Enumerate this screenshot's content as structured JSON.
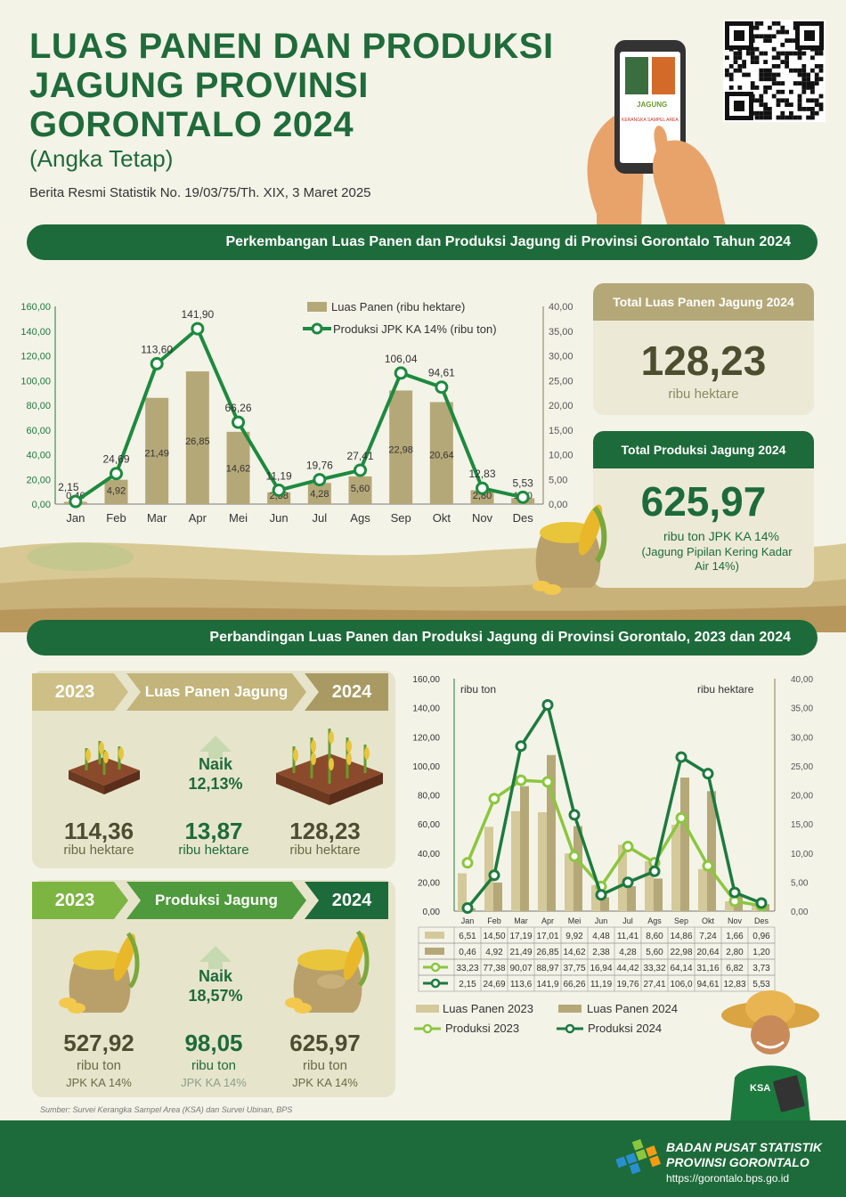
{
  "header": {
    "title": "LUAS PANEN DAN PRODUKSI JAGUNG PROVINSI GORONTALO 2024",
    "subtitle": "(Angka Tetap)",
    "release": "Berita Resmi Statistik No. 19/03/75/Th. XIX, 3 Maret 2025",
    "phone_caption": "JAGUNG",
    "phone_footer": "KERANGKA SAMPEL AREA"
  },
  "section1": {
    "banner": "Perkembangan Luas Panen dan Produksi Jagung di Provinsi Gorontalo Tahun 2024",
    "total_area": {
      "label": "Total Luas Panen Jagung 2024",
      "value": "128,23",
      "unit": "ribu hektare"
    },
    "total_prod": {
      "label": "Total Produksi Jagung 2024",
      "value": "625,97",
      "unit": "ribu ton JPK KA 14%",
      "note": "(Jagung Pipilan Kering Kadar Air 14%)"
    }
  },
  "section2": {
    "banner": "Perbandingan Luas Panen dan Produksi Jagung di Provinsi Gorontalo, 2023 dan 2024",
    "area": {
      "year_a": "2023",
      "label": "Luas Panen Jagung",
      "year_b": "2024",
      "value_a": "114,36",
      "unit_a": "ribu hektare",
      "change_label": "Naik",
      "change_pct": "12,13%",
      "diff": "13,87",
      "diff_unit": "ribu hektare",
      "value_b": "128,23",
      "unit_b": "ribu hektare"
    },
    "prod": {
      "year_a": "2023",
      "label": "Produksi Jagung",
      "year_b": "2024",
      "value_a": "527,92",
      "unit_a": "ribu ton",
      "unit_a2": "JPK KA 14%",
      "change_label": "Naik",
      "change_pct": "18,57%",
      "diff": "98,05",
      "diff_unit": "ribu ton",
      "diff_unit2": "JPK KA 14%",
      "value_b": "625,97",
      "unit_b": "ribu ton",
      "unit_b2": "JPK KA 14%"
    }
  },
  "source": "Sumber: Survei Kerangka Sampel Area (KSA) dan Survei Ubinan, BPS",
  "footer": {
    "org1": "BADAN PUSAT STATISTIK",
    "org2": "PROVINSI GORONTALO",
    "url": "https://gorontalo.bps.go.id",
    "badge": "KSA"
  },
  "colors": {
    "green": "#1d6b3a",
    "lightgreen": "#8cc63f",
    "khaki": "#b5a878",
    "lightkhaki": "#d4c99a"
  },
  "chart_data": [
    {
      "type": "bar+line",
      "categories": [
        "Jan",
        "Feb",
        "Mar",
        "Apr",
        "Mei",
        "Jun",
        "Jul",
        "Ags",
        "Sep",
        "Okt",
        "Nov",
        "Des"
      ],
      "left_axis_ticks": [
        "160,00",
        "140,00",
        "120,00",
        "100,00",
        "80,00",
        "60,00",
        "40,00",
        "20,00",
        "0,00"
      ],
      "right_axis_ticks": [
        "40,00",
        "35,00",
        "30,00",
        "25,00",
        "20,00",
        "15,00",
        "10,00",
        "5,00",
        "0,00"
      ],
      "left_ylim": [
        0,
        160
      ],
      "right_ylim": [
        0,
        40
      ],
      "series": [
        {
          "name": "Luas Panen (ribu hektare)",
          "kind": "bar",
          "axis": "right",
          "values": [
            0.46,
            4.92,
            21.49,
            26.85,
            14.62,
            2.38,
            4.28,
            5.6,
            22.98,
            20.64,
            2.8,
            1.2
          ],
          "labels": [
            "0,46",
            "4,92",
            "21,49",
            "26,85",
            "14,62",
            "2,38",
            "4,28",
            "5,60",
            "22,98",
            "20,64",
            "2,80",
            "1,20"
          ]
        },
        {
          "name": "Produksi JPK KA 14% (ribu ton)",
          "kind": "line",
          "axis": "left",
          "values": [
            2.15,
            24.69,
            113.6,
            141.9,
            66.26,
            11.19,
            19.76,
            27.41,
            106.04,
            94.61,
            12.83,
            5.53
          ],
          "labels": [
            "2,15",
            "24,69",
            "113,60",
            "141,90",
            "66,26",
            "11,19",
            "19,76",
            "27,41",
            "106,04",
            "94,61",
            "12,83",
            "5,53"
          ]
        }
      ],
      "grid": false,
      "legend": "top-right"
    },
    {
      "type": "bar+line",
      "categories": [
        "Jan",
        "Feb",
        "Mar",
        "Apr",
        "Mei",
        "Jun",
        "Jul",
        "Ags",
        "Sep",
        "Okt",
        "Nov",
        "Des"
      ],
      "left_axis_title": "ribu ton",
      "right_axis_title": "ribu hektare",
      "left_axis_ticks": [
        "160,00",
        "140,00",
        "120,00",
        "100,00",
        "80,00",
        "60,00",
        "40,00",
        "20,00",
        "0,00"
      ],
      "right_axis_ticks": [
        "40,00",
        "35,00",
        "30,00",
        "25,00",
        "20,00",
        "15,00",
        "10,00",
        "5,00",
        "0,00"
      ],
      "left_ylim": [
        0,
        160
      ],
      "right_ylim": [
        0,
        40
      ],
      "series": [
        {
          "name": "Luas Panen 2023",
          "kind": "bar",
          "axis": "right",
          "color": "#d4c99a",
          "values": [
            6.51,
            14.5,
            17.19,
            17.01,
            9.92,
            4.48,
            11.41,
            8.6,
            14.86,
            7.24,
            1.66,
            0.96
          ],
          "labels": [
            "6,51",
            "14,50",
            "17,19",
            "17,01",
            "9,92",
            "4,48",
            "11,41",
            "8,60",
            "14,86",
            "7,24",
            "1,66",
            "0,96"
          ]
        },
        {
          "name": "Luas Panen 2024",
          "kind": "bar",
          "axis": "right",
          "color": "#b5a878",
          "values": [
            0.46,
            4.92,
            21.49,
            26.85,
            14.62,
            2.38,
            4.28,
            5.6,
            22.98,
            20.64,
            2.8,
            1.2
          ],
          "labels": [
            "0,46",
            "4,92",
            "21,49",
            "26,85",
            "14,62",
            "2,38",
            "4,28",
            "5,60",
            "22,98",
            "20,64",
            "2,80",
            "1,20"
          ]
        },
        {
          "name": "Produksi 2023",
          "kind": "line",
          "axis": "left",
          "color": "#8cc63f",
          "values": [
            33.23,
            77.38,
            90.07,
            88.97,
            37.75,
            16.94,
            44.42,
            33.32,
            64.14,
            31.16,
            6.82,
            3.73
          ],
          "labels": [
            "33,23",
            "77,38",
            "90,07",
            "88,97",
            "37,75",
            "16,94",
            "44,42",
            "33,32",
            "64,14",
            "31,16",
            "6,82",
            "3,73"
          ]
        },
        {
          "name": "Produksi 2024",
          "kind": "line",
          "axis": "left",
          "color": "#1d7a3e",
          "values": [
            2.15,
            24.69,
            113.6,
            141.9,
            66.26,
            11.19,
            19.76,
            27.41,
            106.0,
            94.61,
            12.83,
            5.53
          ],
          "labels": [
            "2,15",
            "24,69",
            "113,6",
            "141,9",
            "66,26",
            "11,19",
            "19,76",
            "27,41",
            "106,0",
            "94,61",
            "12,83",
            "5,53"
          ]
        }
      ],
      "grid": false,
      "legend": "bottom"
    }
  ]
}
